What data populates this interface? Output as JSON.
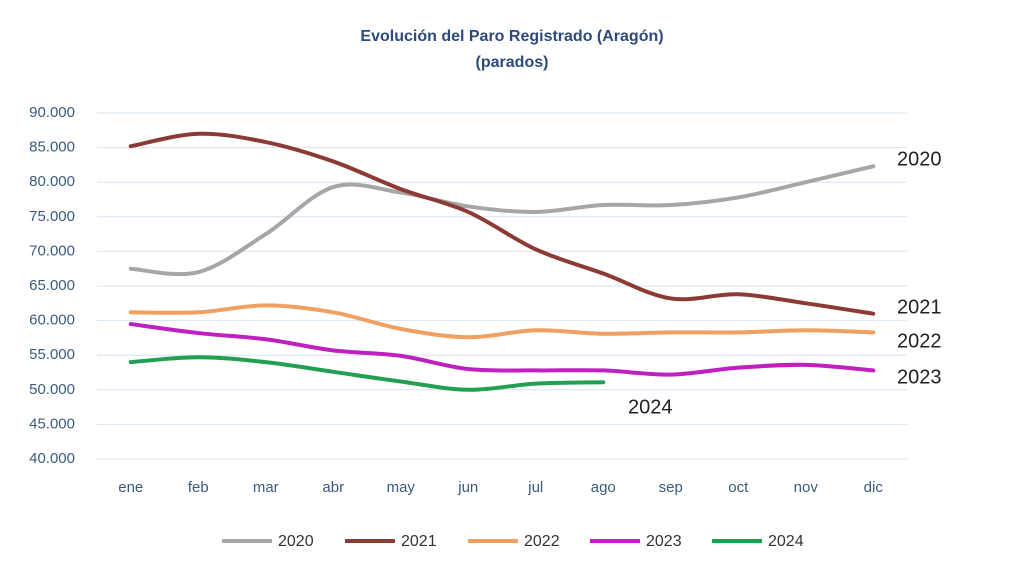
{
  "chart_data": {
    "type": "line",
    "title": "Evolución del Paro Registrado (Aragón)",
    "subtitle": "(parados)",
    "categories": [
      "ene",
      "feb",
      "mar",
      "abr",
      "may",
      "jun",
      "jul",
      "ago",
      "sep",
      "oct",
      "nov",
      "dic"
    ],
    "series": [
      {
        "name": "2020",
        "color": "#a6a6a6",
        "values": [
          67500,
          67000,
          72500,
          79300,
          78500,
          76500,
          75700,
          76700,
          76700,
          77800,
          80000,
          82300
        ]
      },
      {
        "name": "2021",
        "color": "#8b3a36",
        "values": [
          85200,
          87000,
          85800,
          83000,
          79000,
          75700,
          70300,
          66800,
          63200,
          63800,
          62500,
          61000
        ]
      },
      {
        "name": "2022",
        "color": "#f0a060",
        "values": [
          61200,
          61200,
          62200,
          61200,
          58800,
          57600,
          58600,
          58100,
          58300,
          58300,
          58600,
          58300
        ]
      },
      {
        "name": "2023",
        "color": "#c020c0",
        "values": [
          59500,
          58200,
          57300,
          55700,
          54900,
          53000,
          52800,
          52800,
          52200,
          53200,
          53600,
          52800
        ]
      },
      {
        "name": "2024",
        "color": "#20a050",
        "values": [
          54000,
          54700,
          54000,
          52600,
          51200,
          50000,
          50900,
          51100,
          null,
          null,
          null,
          null
        ]
      }
    ],
    "ylim": [
      40000,
      90000
    ],
    "yticks": [
      {
        "value": 40000,
        "label": "40.000"
      },
      {
        "value": 45000,
        "label": "45.000"
      },
      {
        "value": 50000,
        "label": "50.000"
      },
      {
        "value": 55000,
        "label": "55.000"
      },
      {
        "value": 60000,
        "label": "60.000"
      },
      {
        "value": 65000,
        "label": "65.000"
      },
      {
        "value": 70000,
        "label": "70.000"
      },
      {
        "value": 75000,
        "label": "75.000"
      },
      {
        "value": 80000,
        "label": "80.000"
      },
      {
        "value": 85000,
        "label": "85.000"
      },
      {
        "value": 90000,
        "label": "90.000"
      }
    ],
    "grid": true,
    "legend": "bottom"
  }
}
